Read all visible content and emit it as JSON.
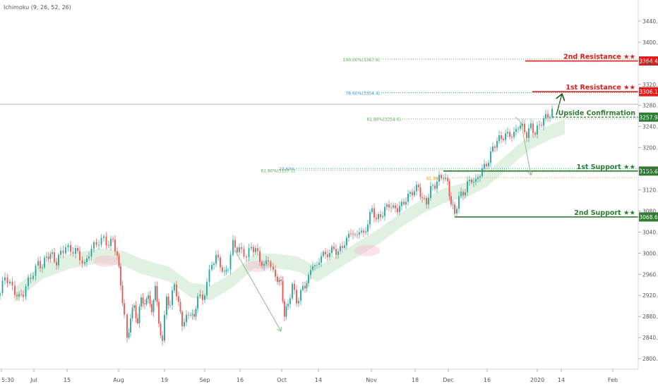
{
  "indicator_label": "Ichimoku (9, 26, 52, 26)",
  "colors": {
    "up": "#26a69a",
    "down": "#ef5350",
    "resistance": "#e31b1b",
    "support": "#2e7d32",
    "cloud_bull": "#c8e6c9",
    "cloud_bear": "#f8bbd0",
    "fib_blue": "#2196f3",
    "fib_green": "#4caf50",
    "fib_orange": "#ff9800"
  },
  "chart_data": {
    "type": "line",
    "title": "",
    "xlabel": "",
    "ylabel": "",
    "ylim": [
      2780,
      3480
    ],
    "y_ticks": [
      "2800.0",
      "2840.0",
      "2880.0",
      "2920.0",
      "2960.0",
      "3000.0",
      "3040.0",
      "3080.0",
      "3120.0",
      "3160.0",
      "3200.0",
      "3240.0",
      "3280.0",
      "3320.0",
      "3360.0",
      "3400.0",
      "3440.0"
    ],
    "x_ticks": [
      "5:30",
      "Jul",
      "15",
      "Aug",
      "19",
      "Sep",
      "16",
      "Oct",
      "14",
      "Nov",
      "18",
      "Dec",
      "16",
      "2020",
      "14",
      "Feb"
    ],
    "price_path": [
      [
        0,
        2920
      ],
      [
        7,
        2955
      ],
      [
        14,
        2945
      ],
      [
        21,
        2930
      ],
      [
        27,
        2915
      ],
      [
        33,
        2920
      ],
      [
        40,
        2945
      ],
      [
        47,
        2965
      ],
      [
        54,
        2985
      ],
      [
        60,
        2975
      ],
      [
        66,
        2990
      ],
      [
        74,
        2995
      ],
      [
        80,
        2985
      ],
      [
        86,
        3005
      ],
      [
        93,
        3010
      ],
      [
        100,
        3000
      ],
      [
        107,
        3005
      ],
      [
        113,
        2995
      ],
      [
        120,
        2980
      ],
      [
        126,
        3000
      ],
      [
        133,
        3010
      ],
      [
        140,
        3020
      ],
      [
        147,
        3030
      ],
      [
        154,
        3020
      ],
      [
        160,
        3025
      ],
      [
        166,
        2990
      ],
      [
        171,
        2940
      ],
      [
        176,
        2880
      ],
      [
        180,
        2840
      ],
      [
        185,
        2880
      ],
      [
        190,
        2900
      ],
      [
        195,
        2860
      ],
      [
        200,
        2920
      ],
      [
        205,
        2900
      ],
      [
        210,
        2930
      ],
      [
        215,
        2880
      ],
      [
        220,
        2940
      ],
      [
        225,
        2860
      ],
      [
        230,
        2840
      ],
      [
        236,
        2920
      ],
      [
        241,
        2900
      ],
      [
        247,
        2940
      ],
      [
        253,
        2900
      ],
      [
        258,
        2870
      ],
      [
        264,
        2880
      ],
      [
        270,
        2890
      ],
      [
        275,
        2870
      ],
      [
        280,
        2920
      ],
      [
        287,
        2910
      ],
      [
        293,
        2950
      ],
      [
        300,
        2980
      ],
      [
        306,
        2990
      ],
      [
        312,
        2975
      ],
      [
        318,
        2960
      ],
      [
        323,
        2980
      ],
      [
        330,
        3020
      ],
      [
        336,
        3005
      ],
      [
        342,
        3000
      ],
      [
        349,
        2995
      ],
      [
        356,
        3015
      ],
      [
        362,
        3010
      ],
      [
        368,
        2985
      ],
      [
        374,
        2970
      ],
      [
        380,
        2990
      ],
      [
        387,
        2965
      ],
      [
        393,
        2955
      ],
      [
        398,
        2940
      ],
      [
        403,
        2880
      ],
      [
        408,
        2900
      ],
      [
        414,
        2945
      ],
      [
        420,
        2910
      ],
      [
        426,
        2925
      ],
      [
        432,
        2935
      ],
      [
        437,
        2950
      ],
      [
        443,
        2985
      ],
      [
        449,
        2975
      ],
      [
        455,
        3000
      ],
      [
        461,
        2990
      ],
      [
        467,
        3000
      ],
      [
        473,
        3010
      ],
      [
        479,
        3005
      ],
      [
        485,
        3015
      ],
      [
        491,
        3020
      ],
      [
        497,
        3040
      ],
      [
        503,
        3030
      ],
      [
        509,
        3050
      ],
      [
        515,
        3035
      ],
      [
        521,
        3055
      ],
      [
        527,
        3080
      ],
      [
        533,
        3065
      ],
      [
        539,
        3075
      ],
      [
        545,
        3085
      ],
      [
        551,
        3090
      ],
      [
        557,
        3080
      ],
      [
        563,
        3085
      ],
      [
        569,
        3095
      ],
      [
        575,
        3105
      ],
      [
        581,
        3110
      ],
      [
        587,
        3115
      ],
      [
        593,
        3125
      ],
      [
        598,
        3105
      ],
      [
        604,
        3100
      ],
      [
        610,
        3120
      ],
      [
        616,
        3125
      ],
      [
        622,
        3140
      ],
      [
        628,
        3150
      ],
      [
        634,
        3135
      ],
      [
        639,
        3095
      ],
      [
        644,
        3070
      ],
      [
        650,
        3105
      ],
      [
        656,
        3115
      ],
      [
        662,
        3135
      ],
      [
        668,
        3140
      ],
      [
        674,
        3130
      ],
      [
        680,
        3150
      ],
      [
        686,
        3165
      ],
      [
        692,
        3180
      ],
      [
        698,
        3200
      ],
      [
        704,
        3210
      ],
      [
        710,
        3215
      ],
      [
        716,
        3225
      ],
      [
        722,
        3230
      ],
      [
        728,
        3225
      ],
      [
        734,
        3240
      ],
      [
        740,
        3235
      ],
      [
        746,
        3225
      ],
      [
        752,
        3245
      ],
      [
        758,
        3230
      ],
      [
        764,
        3240
      ],
      [
        770,
        3250
      ],
      [
        776,
        3260
      ],
      [
        782,
        3272
      ]
    ],
    "cloud_path": [
      [
        20,
        2920
      ],
      [
        60,
        2965
      ],
      [
        100,
        2985
      ],
      [
        140,
        2995
      ],
      [
        175,
        2990
      ],
      [
        200,
        2975
      ],
      [
        240,
        2960
      ],
      [
        270,
        2930
      ],
      [
        300,
        2925
      ],
      [
        330,
        2950
      ],
      [
        360,
        2985
      ],
      [
        390,
        2985
      ],
      [
        420,
        2980
      ],
      [
        450,
        2960
      ],
      [
        480,
        2985
      ],
      [
        510,
        3010
      ],
      [
        540,
        3035
      ],
      [
        570,
        3065
      ],
      [
        600,
        3090
      ],
      [
        630,
        3110
      ],
      [
        660,
        3120
      ],
      [
        690,
        3140
      ],
      [
        720,
        3175
      ],
      [
        750,
        3210
      ],
      [
        780,
        3230
      ],
      [
        800,
        3240
      ]
    ],
    "annotations": [
      {
        "label": "2nd Resistance ★★",
        "value": 3364.4,
        "price_label": "3364.4",
        "kind": "resistance"
      },
      {
        "label": "1st Resistance ★★",
        "value": 3306.1,
        "price_label": "3306.1",
        "kind": "resistance"
      },
      {
        "label": "Upside Confirmation",
        "value": 3257.9,
        "price_label": "3257.9",
        "kind": "support"
      },
      {
        "label": "1st Support ★★",
        "value": 3155.6,
        "price_label": "3155.6",
        "kind": "support"
      },
      {
        "label": "2nd Support ★★",
        "value": 3068.6,
        "price_label": "3068.6",
        "kind": "support"
      }
    ],
    "fib_levels": [
      {
        "label": "100.00%(3367.9)",
        "value": 3367.9,
        "color": "fib_green"
      },
      {
        "label": "78.60%(3304.4)",
        "value": 3304.4,
        "color": "fib_blue"
      },
      {
        "label": "61.80%(3254.6)",
        "value": 3254.6,
        "color": "fib_green"
      },
      {
        "label": "23.60%",
        "value": 3160.5,
        "color": "fib_blue"
      },
      {
        "label": "61.80%(3157.1)",
        "value": 3157.1,
        "color": "fib_green"
      },
      {
        "label": "61.8%",
        "value": 3143,
        "color": "fib_orange"
      }
    ]
  }
}
